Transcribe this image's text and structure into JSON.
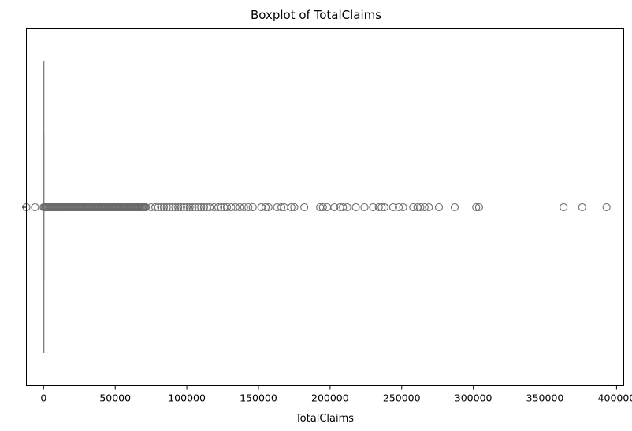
{
  "chart_data": {
    "type": "box",
    "title": "Boxplot of TotalClaims",
    "xlabel": "TotalClaims",
    "ylabel": "",
    "orientation": "horizontal",
    "xlim": [
      -12000,
      405000
    ],
    "x_ticks": [
      0,
      50000,
      100000,
      150000,
      200000,
      250000,
      300000,
      350000,
      400000
    ],
    "x_tick_labels": [
      "0",
      "50000",
      "100000",
      "150000",
      "200000",
      "250000",
      "300000",
      "350000",
      "400000"
    ],
    "box": {
      "min": 0,
      "q1": 0,
      "median": 0,
      "q3": 0,
      "max": 0,
      "color": "#7f7f7f"
    },
    "outlier_dense_range": [
      0,
      72000
    ],
    "outliers": [
      -12000,
      -6000,
      75000,
      78000,
      80000,
      82000,
      84000,
      86000,
      88000,
      90000,
      92000,
      94000,
      96000,
      98000,
      100000,
      102000,
      104000,
      106000,
      108000,
      110000,
      112000,
      114000,
      116000,
      119000,
      122000,
      124000,
      126000,
      128000,
      131000,
      134000,
      137000,
      140000,
      143000,
      146000,
      152000,
      155000,
      157000,
      163000,
      166000,
      168000,
      173000,
      175000,
      182000,
      193000,
      195000,
      198000,
      203000,
      207000,
      209000,
      212000,
      218000,
      224000,
      230000,
      234000,
      236000,
      238000,
      244000,
      248000,
      251000,
      258000,
      261000,
      263000,
      266000,
      269000,
      276000,
      287000,
      302000,
      304000,
      363000,
      376000,
      393000
    ],
    "outlier_color": "#6b6b6b",
    "grid": false,
    "legend": false
  }
}
